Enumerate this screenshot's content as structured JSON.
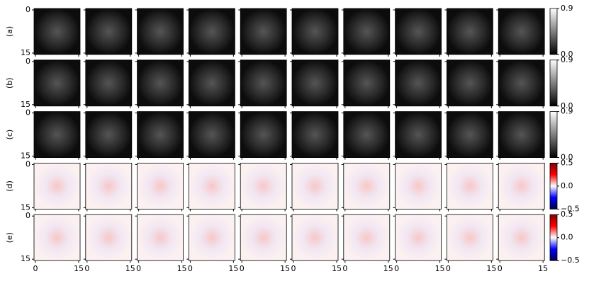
{
  "chart_data": {
    "type": "heatmap-grid",
    "xlim": [
      -0.5,
      15.5
    ],
    "ylim": [
      -0.5,
      15.5
    ],
    "xticks": [
      0,
      15
    ],
    "yticks": [
      0,
      15
    ],
    "rows": [
      {
        "label": "(a)",
        "colormap": "gray",
        "clim": [
          0,
          0.9
        ],
        "cticks": [
          {
            "value": 0,
            "label": "0.0"
          },
          0.9
        ]
      },
      {
        "label": "(b)",
        "colormap": "gray",
        "clim": [
          0,
          0.9
        ],
        "cticks": [
          {
            "value": 0,
            "label": "0.0"
          },
          0.9
        ]
      },
      {
        "label": "(c)",
        "colormap": "gray",
        "clim": [
          0,
          0.9
        ],
        "cticks": [
          {
            "value": 0,
            "label": "0.0"
          },
          0.9
        ]
      },
      {
        "label": "(d)",
        "colormap": "seismic",
        "clim": [
          -0.5,
          0.5
        ],
        "cticks": [
          {
            "value": -0.5,
            "label": "−0.5"
          },
          {
            "value": 0,
            "label": "0.0"
          },
          0.5
        ]
      },
      {
        "label": "(e)",
        "colormap": "seismic",
        "clim": [
          -0.5,
          0.5
        ],
        "cticks": [
          {
            "value": -0.5,
            "label": "−0.5"
          },
          {
            "value": 0,
            "label": "0.0"
          },
          0.5
        ]
      }
    ]
  }
}
